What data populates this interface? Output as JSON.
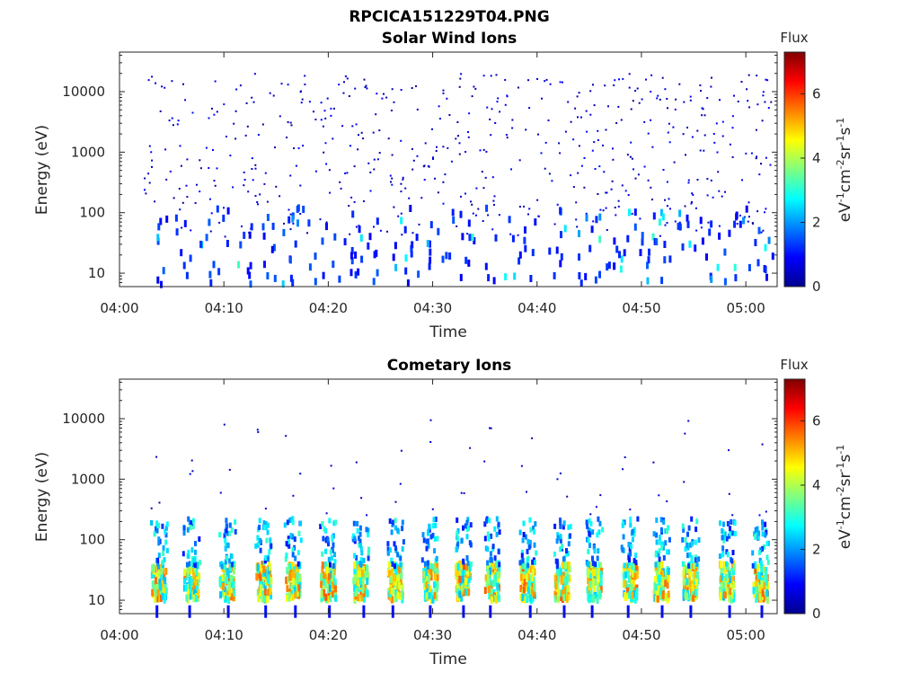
{
  "figure": {
    "title": "RPCICA151229T04.PNG"
  },
  "colormap": "jet",
  "chart_data": [
    {
      "type": "heatmap",
      "title": "Solar Wind Ions",
      "xlabel": "Time",
      "ylabel": "Energy (eV)",
      "x_ticks": [
        "04:00",
        "04:10",
        "04:20",
        "04:30",
        "04:40",
        "04:50",
        "05:00"
      ],
      "xlim_minutes": [
        0,
        63
      ],
      "y_scale": "log",
      "y_ticks": [
        "10",
        "100",
        "1000",
        "10000"
      ],
      "ylim": [
        6,
        45000
      ],
      "colorbar": {
        "title": "Flux",
        "label": "eV-1cm-2sr-1s-1",
        "ticks": [
          "0",
          "2",
          "4",
          "6"
        ],
        "range": [
          0,
          7.3
        ]
      },
      "description": "Sparse dark-blue points (flux ~0.3-1) scattered across 40 eV - 30 keV; denser blue/cyan streaks (flux ~1-3) below 100 eV over the whole interval."
    },
    {
      "type": "heatmap",
      "title": "Cometary Ions",
      "xlabel": "Time",
      "ylabel": "Energy (eV)",
      "x_ticks": [
        "04:00",
        "04:10",
        "04:20",
        "04:30",
        "04:40",
        "04:50",
        "05:00"
      ],
      "xlim_minutes": [
        0,
        63
      ],
      "y_scale": "log",
      "y_ticks": [
        "10",
        "100",
        "1000",
        "10000"
      ],
      "ylim": [
        6,
        45000
      ],
      "colorbar": {
        "title": "Flux",
        "label": "eV-1cm-2sr-1s-1",
        "ticks": [
          "0",
          "2",
          "4",
          "6"
        ],
        "range": [
          0,
          7.3
        ]
      },
      "bursts_minute": [
        3.7,
        6.8,
        10.2,
        13.7,
        16.5,
        19.9,
        23.0,
        26.3,
        29.7,
        32.8,
        35.6,
        39.0,
        42.3,
        45.4,
        48.8,
        51.8,
        54.6,
        58.1,
        61.3
      ],
      "description": "Periodic vertical bursts at ~3 min spacing; flux up to ~5-6 (yellow/orange) at 10-40 eV, cyan 40-200 eV, sparse dark-blue points up to ~10 keV."
    }
  ]
}
